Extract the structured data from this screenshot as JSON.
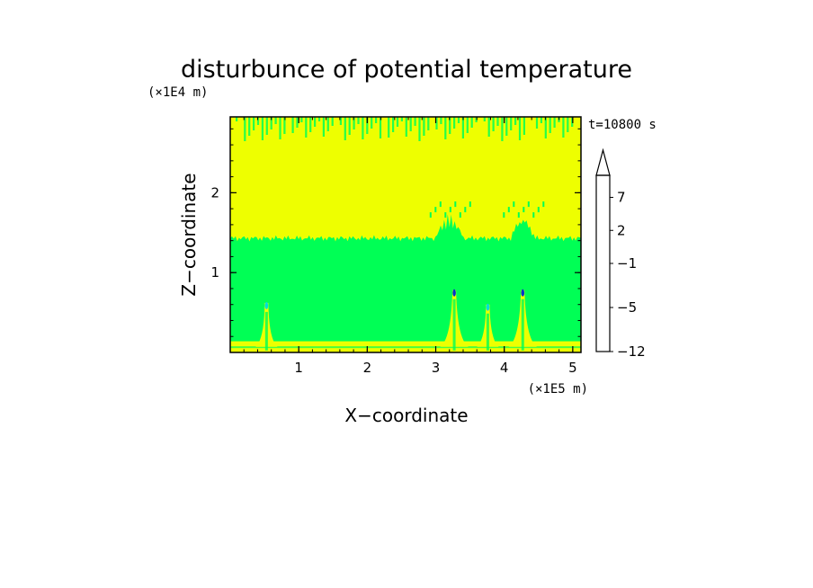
{
  "chart_data": {
    "type": "heatmap",
    "title": "disturbunce of potential temperature",
    "xlabel": "X−coordinate",
    "ylabel": "Z−coordinate",
    "x_unit": "(×1E5 m)",
    "y_unit": "(×1E4 m)",
    "time_label": "t=10800 s",
    "xlim": [
      0,
      5.12
    ],
    "ylim": [
      0,
      2.95
    ],
    "x_ticks": [
      1,
      2,
      3,
      4,
      5
    ],
    "x_tick_labels": [
      "1",
      "2",
      "3",
      "4",
      "5"
    ],
    "y_ticks": [
      1,
      2
    ],
    "y_tick_labels": [
      "1",
      "2"
    ],
    "grid": false,
    "colorbar": {
      "levels": [
        -12,
        -11,
        -9,
        -7,
        -5,
        -4,
        -3,
        -2,
        -1,
        0,
        1,
        2,
        3,
        5,
        7,
        9
      ],
      "colors": [
        "#ff00cc",
        "#cc1199",
        "#8822bb",
        "#5511aa",
        "#001199",
        "#0033cc",
        "#1188ff",
        "#00dddd",
        "#00ff55",
        "#eeff00",
        "#ffcc00",
        "#ff9900",
        "#ff5500",
        "#ee1111",
        "#ff6666",
        "#ffbbbb"
      ],
      "tick_values": [
        -12,
        -5,
        -1,
        2,
        7
      ],
      "tick_labels": [
        "−12",
        "−5",
        "−1",
        "2",
        "7"
      ],
      "top_extension": true
    },
    "field": {
      "background_lower": "#00ff55",
      "background_upper": "#eeff00",
      "interface_height": 1.43,
      "surface_layer_top": 0.14,
      "plumes": [
        {
          "x": 0.53,
          "z_top": 0.62,
          "halfwidth": 0.1,
          "tip_color": "#00dddd"
        },
        {
          "x": 3.27,
          "z_top": 0.78,
          "halfwidth": 0.13,
          "tip_color": "#0033cc"
        },
        {
          "x": 3.76,
          "z_top": 0.6,
          "halfwidth": 0.1,
          "tip_color": "#00dddd"
        },
        {
          "x": 4.27,
          "z_top": 0.78,
          "halfwidth": 0.13,
          "tip_color": "#0033cc"
        }
      ],
      "interface_bumps": [
        {
          "x": 3.2,
          "height": 0.28,
          "halfwidth": 0.2
        },
        {
          "x": 4.27,
          "height": 0.28,
          "halfwidth": 0.17
        }
      ]
    }
  }
}
